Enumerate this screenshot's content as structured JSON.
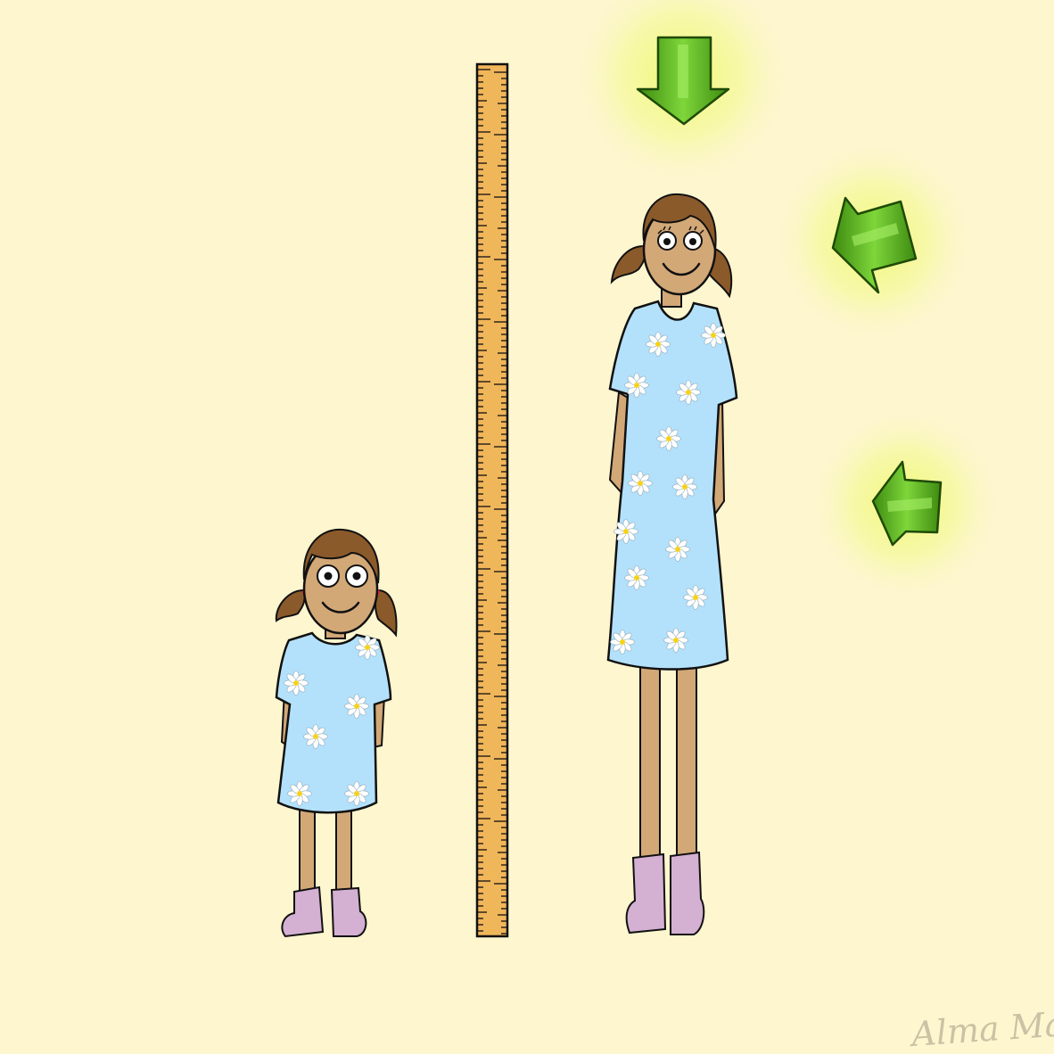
{
  "illustration": {
    "subject": "growth-comparison",
    "signature": "Alma Manky"
  },
  "colors": {
    "background": "#fdf6cf",
    "ruler": "#f0b65a",
    "skin": "#d2a877",
    "hair": "#8b5a2b",
    "dress": "#b3e1fb",
    "boots": "#d4b0d3",
    "arrow": "#4a9b16",
    "glow": "#eef96a",
    "outline": "#111111",
    "signature": "#c9c2a4"
  },
  "icons": {
    "arrow_top": "arrow-down-icon",
    "arrow_middle": "arrow-left-diagonal-icon",
    "arrow_lower": "arrow-left-icon"
  }
}
